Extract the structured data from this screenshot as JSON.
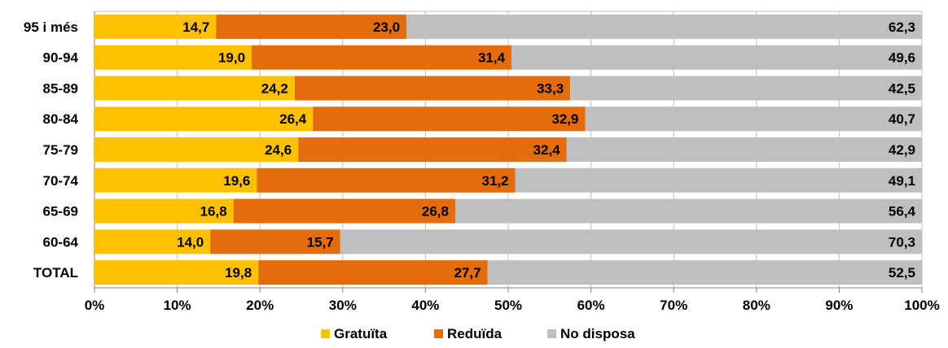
{
  "chart_data": {
    "type": "bar",
    "orientation": "horizontal",
    "stacked": true,
    "percent_stacked": true,
    "categories": [
      "95 i més",
      "90-94",
      "85-89",
      "80-84",
      "75-79",
      "70-74",
      "65-69",
      "60-64",
      "TOTAL"
    ],
    "series": [
      {
        "name": "Gratuïta",
        "color": "#FFC000",
        "values": [
          14.7,
          19.0,
          24.2,
          26.4,
          24.6,
          19.6,
          16.8,
          14.0,
          19.8
        ],
        "labels": [
          "14,7",
          "19,0",
          "24,2",
          "26,4",
          "24,6",
          "19,6",
          "16,8",
          "14,0",
          "19,8"
        ]
      },
      {
        "name": "Reduïda",
        "color": "#E46C0A",
        "values": [
          23.0,
          31.4,
          33.3,
          32.9,
          32.4,
          31.2,
          26.8,
          15.7,
          27.7
        ],
        "labels": [
          "23,0",
          "31,4",
          "33,3",
          "32,9",
          "32,4",
          "31,2",
          "26,8",
          "15,7",
          "27,7"
        ]
      },
      {
        "name": "No disposa",
        "color": "#BFBFBF",
        "values": [
          62.3,
          49.6,
          42.5,
          40.7,
          42.9,
          49.1,
          56.4,
          70.3,
          52.5
        ],
        "labels": [
          "62,3",
          "49,6",
          "42,5",
          "40,7",
          "42,9",
          "49,1",
          "56,4",
          "70,3",
          "52,5"
        ]
      }
    ],
    "xlim": [
      0,
      100
    ],
    "x_ticks": [
      "0%",
      "10%",
      "20%",
      "30%",
      "40%",
      "50%",
      "60%",
      "70%",
      "80%",
      "90%",
      "100%"
    ],
    "grid": true,
    "legend_position": "bottom"
  }
}
